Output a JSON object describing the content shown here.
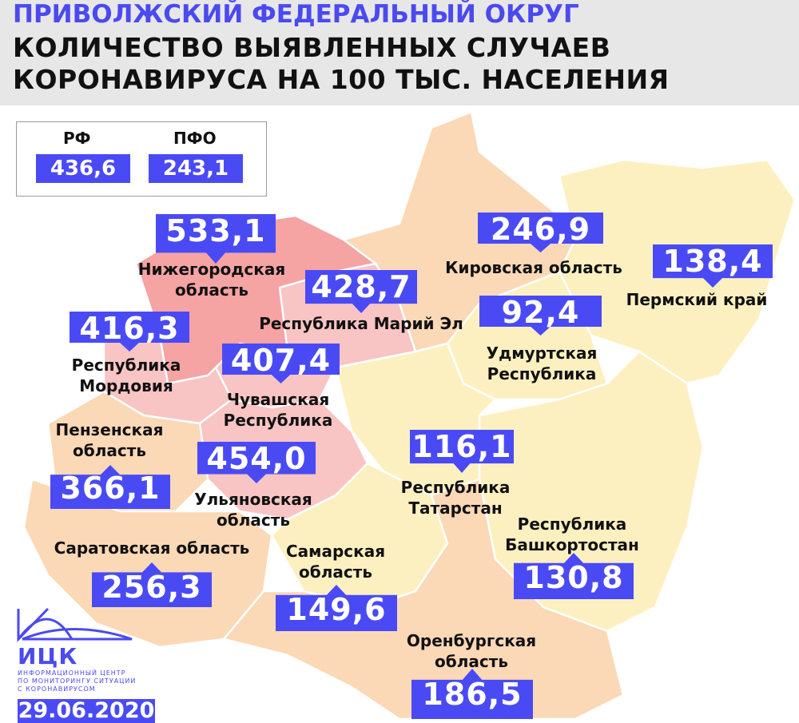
{
  "header": {
    "line1": "ПРИВОЛЖСКИЙ ФЕДЕРАЛЬНЫЙ ОКРУГ",
    "line2": "КОЛИЧЕСТВО ВЫЯВЛЕННЫХ СЛУЧАЕВ",
    "line3": "КОРОНАВИРУСА НА 100 ТЫС. НАСЕЛЕНИЯ"
  },
  "legend": {
    "rf_label": "РФ",
    "rf_value": "436,6",
    "pfo_label": "ПФО",
    "pfo_value": "243,1"
  },
  "colors": {
    "accent": "#4a4af5",
    "high": "#f5a3a3",
    "mid_high": "#f8c4c4",
    "mid": "#fbd8b6",
    "low": "#fdf0c0"
  },
  "regions": {
    "nizhny": {
      "name1": "Нижегородская",
      "name2": "область",
      "value": "533,1"
    },
    "mari": {
      "name1": "Республика Марий Эл",
      "value": "428,7"
    },
    "mordovia": {
      "name1": "Республика",
      "name2": "Мордовия",
      "value": "416,3"
    },
    "chuvash": {
      "name1": "Чувашская",
      "name2": "Республика",
      "value": "407,4"
    },
    "penza": {
      "name1": "Пензенская",
      "name2": "область",
      "value": "366,1"
    },
    "ulyanovsk": {
      "name1": "Ульяновская",
      "name2": "область",
      "value": "454,0"
    },
    "saratov": {
      "name1": "Саратовская область",
      "value": "256,3"
    },
    "samara": {
      "name1": "Самарская",
      "name2": "область",
      "value": "149,6"
    },
    "tatarstan": {
      "name1": "Республика",
      "name2": "Татарстан",
      "value": "116,1"
    },
    "bashkortostan": {
      "name1": "Республика",
      "name2": "Башкортостан",
      "value": "130,8"
    },
    "orenburg": {
      "name1": "Оренбургская",
      "name2": "область",
      "value": "186,5"
    },
    "kirov": {
      "name1": "Кировская область",
      "value": "246,9"
    },
    "perm": {
      "name1": "Пермский край",
      "value": "138,4"
    },
    "udmurt": {
      "name1": "Удмуртская",
      "name2": "Республика",
      "value": "92,4"
    }
  },
  "logo": {
    "name": "ИЦК",
    "sub1": "ИНФОРМАЦИОННЫЙ ЦЕНТР",
    "sub2": "ПО МОНИТОРИНГУ СИТУАЦИИ",
    "sub3": "С КОРОНАВИРУСОМ"
  },
  "date": "29.06.2020"
}
